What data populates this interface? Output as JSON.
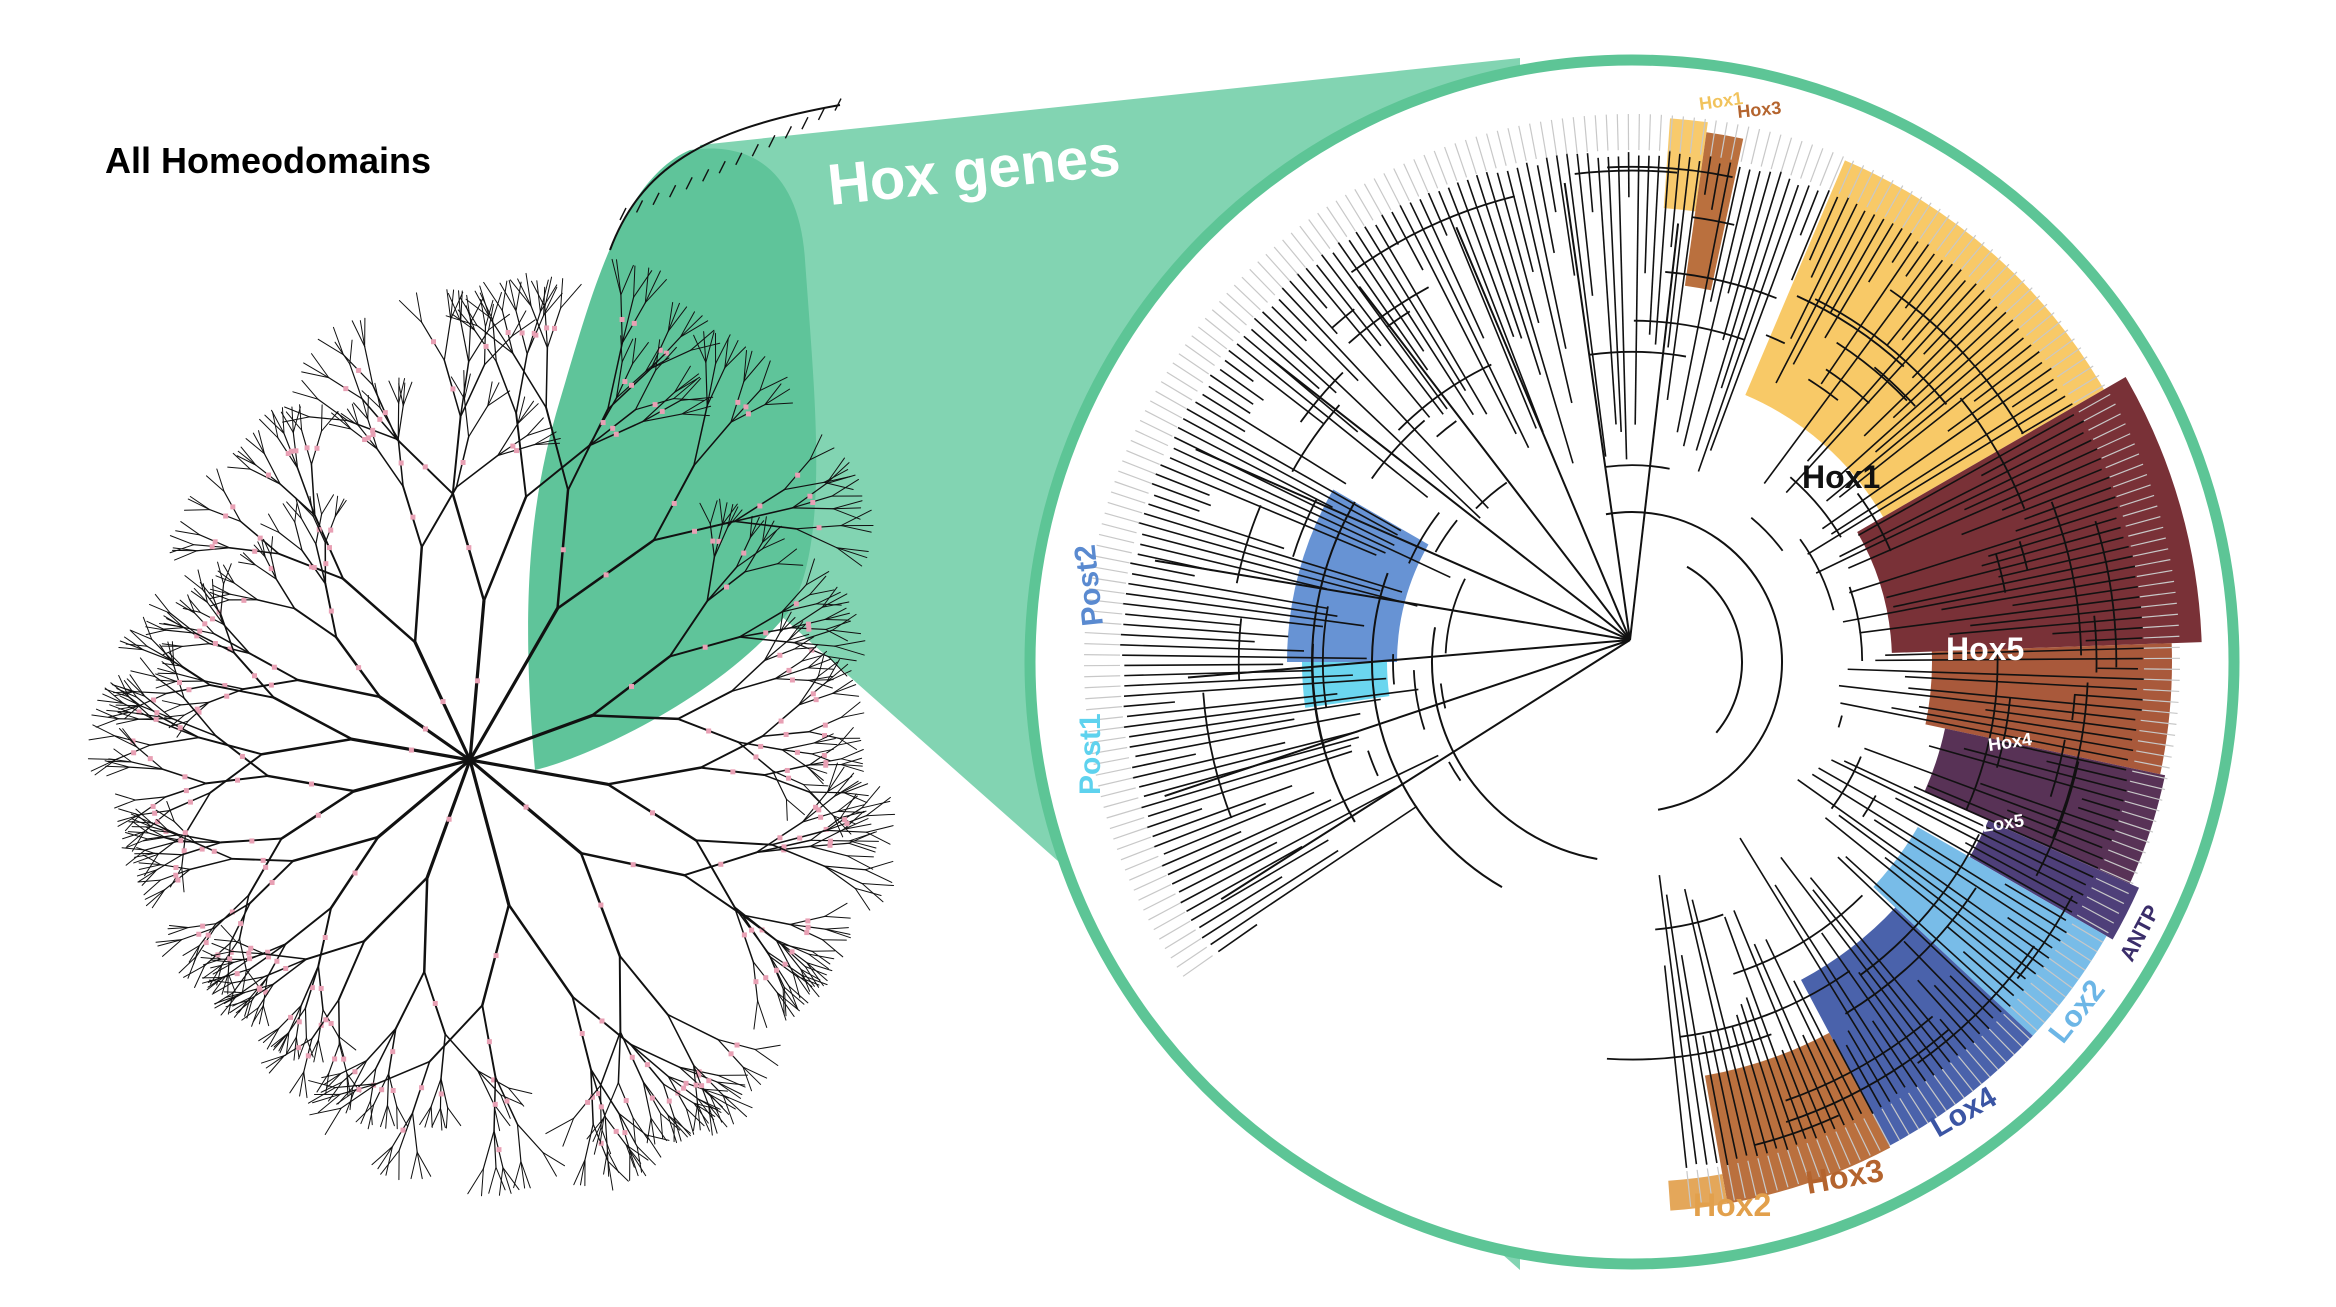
{
  "title": "All Homeodomains",
  "zoom_label": "Hox genes",
  "colors": {
    "zoom_green": "#5fc49a",
    "zoom_green_light": "#82d4b2",
    "ring_green": "#5dc596",
    "branch": "#111111",
    "node_pink": "#e8a0b4"
  },
  "clades": [
    {
      "id": "hox1-small",
      "label": "Hox1",
      "color": "#f7c660",
      "text_color": "#f1c35c"
    },
    {
      "id": "hox3-small",
      "label": "Hox3",
      "color": "#b4642e",
      "text_color": "#b4642e"
    },
    {
      "id": "hox1",
      "label": "Hox1",
      "color": "#f7c45a",
      "text_color": "#111111"
    },
    {
      "id": "hox5",
      "label": "Hox5",
      "color": "#6e1f26",
      "text_color": "#ffffff"
    },
    {
      "id": "hox4",
      "label": "Hox4",
      "color": "#a24b2a",
      "text_color": "#ffffff"
    },
    {
      "id": "lox5",
      "label": "Lox5",
      "color": "#4a2148",
      "text_color": "#ffffff"
    },
    {
      "id": "antp",
      "label": "ANTP",
      "color": "#3f2f6e",
      "text_color": "#3a2d6a"
    },
    {
      "id": "lox2",
      "label": "Lox2",
      "color": "#6cb6e6",
      "text_color": "#6cb6e6"
    },
    {
      "id": "lox4",
      "label": "Lox4",
      "color": "#3b55a4",
      "text_color": "#3b55a4"
    },
    {
      "id": "hox3",
      "label": "Hox3",
      "color": "#b4642e",
      "text_color": "#b4642e"
    },
    {
      "id": "hox2",
      "label": "Hox2",
      "color": "#e2a04c",
      "text_color": "#e2a04c"
    },
    {
      "id": "post1",
      "label": "Post1",
      "color": "#5ed2ee",
      "text_color": "#5ed2ee"
    },
    {
      "id": "post2",
      "label": "Post2",
      "color": "#5a8ad0",
      "text_color": "#5a8ad0"
    }
  ]
}
